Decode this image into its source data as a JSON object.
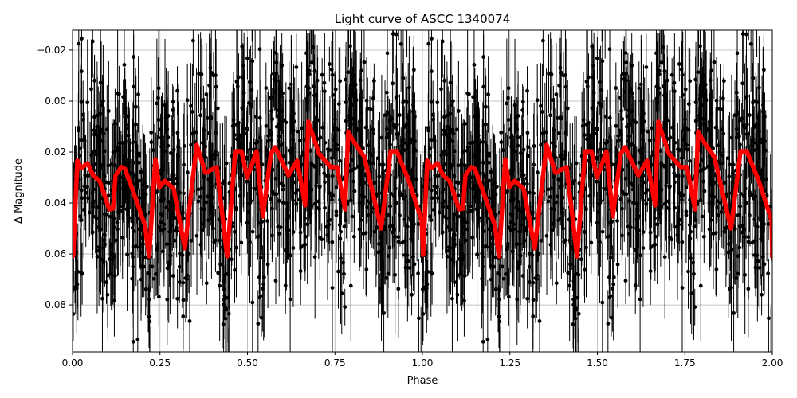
{
  "chart_data": {
    "type": "scatter",
    "title": "Light curve of ASCC 1340074",
    "xlabel": "Phase",
    "ylabel": "Δ Magnitude",
    "xlim": [
      0,
      2.0
    ],
    "ylim": [
      0.0984,
      -0.0278
    ],
    "y_inverted": true,
    "grid": true,
    "xticks": [
      "0.00",
      "0.25",
      "0.50",
      "0.75",
      "1.00",
      "1.25",
      "1.50",
      "1.75",
      "2.00"
    ],
    "xtick_values": [
      0,
      0.25,
      0.5,
      0.75,
      1.0,
      1.25,
      1.5,
      1.75,
      2.0
    ],
    "yticks": [
      "−0.02",
      "0.00",
      "0.02",
      "0.04",
      "0.06",
      "0.08"
    ],
    "ytick_values": [
      -0.02,
      0,
      0.02,
      0.04,
      0.06,
      0.08
    ],
    "series": [
      {
        "kind": "errorbar-points",
        "color": "#000000",
        "note": "dense phase-folded photometry points with vertical error bars, scattered about the model curve"
      },
      {
        "kind": "line",
        "color": "#ff0000",
        "x": [
          0.0,
          0.002,
          0.014,
          0.025,
          0.043,
          0.059,
          0.077,
          0.093,
          0.105,
          0.116,
          0.123,
          0.139,
          0.15,
          0.185,
          0.207,
          0.219,
          0.237,
          0.248,
          0.264,
          0.289,
          0.321,
          0.355,
          0.38,
          0.412,
          0.442,
          0.465,
          0.483,
          0.499,
          0.526,
          0.544,
          0.567,
          0.579,
          0.617,
          0.642,
          0.665,
          0.674,
          0.704,
          0.738,
          0.756,
          0.779,
          0.788,
          0.802,
          0.834,
          0.882,
          0.909,
          0.927,
          0.961,
          0.998,
          1.002,
          1.014,
          1.025,
          1.043,
          1.059,
          1.077,
          1.093,
          1.105,
          1.116,
          1.123,
          1.139,
          1.15,
          1.185,
          1.207,
          1.219,
          1.237,
          1.248,
          1.264,
          1.289,
          1.321,
          1.355,
          1.38,
          1.412,
          1.442,
          1.465,
          1.483,
          1.499,
          1.526,
          1.544,
          1.567,
          1.579,
          1.617,
          1.642,
          1.665,
          1.674,
          1.704,
          1.738,
          1.756,
          1.779,
          1.788,
          1.802,
          1.834,
          1.882,
          1.909,
          1.927,
          1.961,
          1.998,
          2.0
        ],
        "y": [
          0.061,
          0.0603,
          0.0234,
          0.0263,
          0.0244,
          0.0291,
          0.0313,
          0.0375,
          0.0425,
          0.0422,
          0.0291,
          0.0259,
          0.0266,
          0.04,
          0.0488,
          0.0609,
          0.0228,
          0.0338,
          0.0313,
          0.0344,
          0.0578,
          0.0172,
          0.0281,
          0.0259,
          0.0609,
          0.0197,
          0.0197,
          0.03,
          0.0197,
          0.0453,
          0.0206,
          0.0181,
          0.0291,
          0.0234,
          0.0409,
          0.0081,
          0.0206,
          0.0259,
          0.0259,
          0.0425,
          0.0119,
          0.0156,
          0.0219,
          0.05,
          0.0197,
          0.0197,
          0.0313,
          0.0469,
          0.0603,
          0.0234,
          0.0263,
          0.0244,
          0.0291,
          0.0313,
          0.0375,
          0.0425,
          0.0422,
          0.0291,
          0.0259,
          0.0266,
          0.04,
          0.0488,
          0.0609,
          0.0228,
          0.0338,
          0.0313,
          0.0344,
          0.0578,
          0.0172,
          0.0281,
          0.0259,
          0.0609,
          0.0197,
          0.0197,
          0.03,
          0.0197,
          0.0453,
          0.0206,
          0.0181,
          0.0291,
          0.0234,
          0.0409,
          0.0081,
          0.0206,
          0.0259,
          0.0259,
          0.0425,
          0.0119,
          0.0156,
          0.0219,
          0.05,
          0.0197,
          0.0197,
          0.0313,
          0.0469,
          0.061
        ]
      }
    ]
  }
}
